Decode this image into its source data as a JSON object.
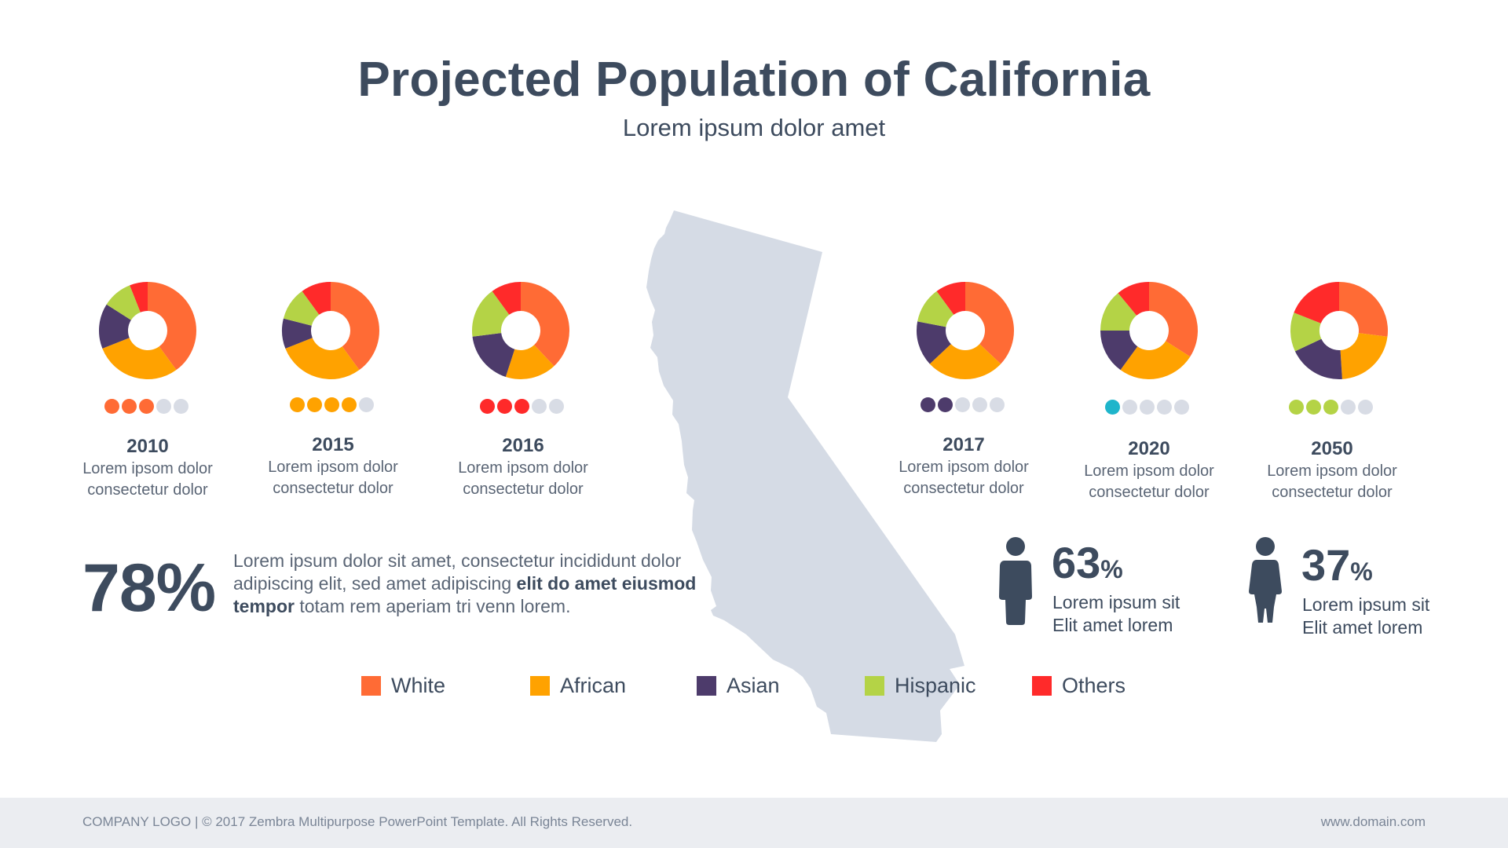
{
  "header": {
    "title": "Projected Population of California",
    "subtitle": "Lorem ipsum dolor amet"
  },
  "colors": {
    "white": "#ff6b35",
    "african": "#ffa200",
    "asian": "#4d3b6b",
    "hispanic": "#b4d346",
    "others": "#ff2a2a",
    "dot_inactive": "#d8dce5",
    "map": "#d5dbe5",
    "dark": "#3d4b5e"
  },
  "chart_data": {
    "type": "pie",
    "variant": "donut",
    "legend": [
      "White",
      "African",
      "Asian",
      "Hispanic",
      "Others"
    ],
    "charts": [
      {
        "year": "2010",
        "desc_line1": "Lorem ipsom dolor",
        "desc_line2": "consectetur dolor",
        "values": [
          40,
          29,
          15,
          10,
          6
        ],
        "dots_active": 3,
        "dots_total": 5,
        "dot_color": "#ff6b35"
      },
      {
        "year": "2015",
        "desc_line1": "Lorem ipsom dolor",
        "desc_line2": "consectetur dolor",
        "values": [
          40,
          29,
          10,
          11,
          10
        ],
        "dots_active": 4,
        "dots_total": 5,
        "dot_color": "#ffa200"
      },
      {
        "year": "2016",
        "desc_line1": "Lorem ipsom dolor",
        "desc_line2": "consectetur dolor",
        "values": [
          38,
          17,
          18,
          17,
          10
        ],
        "dots_active": 3,
        "dots_total": 5,
        "dot_color": "#ff2a2a"
      },
      {
        "year": "2017",
        "desc_line1": "Lorem ipsom dolor",
        "desc_line2": "consectetur dolor",
        "values": [
          37,
          26,
          15,
          12,
          10
        ],
        "dots_active": 2,
        "dots_total": 5,
        "dot_color": "#4d3b6b"
      },
      {
        "year": "2020",
        "desc_line1": "Lorem ipsom dolor",
        "desc_line2": "consectetur dolor",
        "values": [
          34,
          26,
          15,
          14,
          11
        ],
        "dots_active": 1,
        "dots_total": 5,
        "dot_color": "#1fb5cb"
      },
      {
        "year": "2050",
        "desc_line1": "Lorem ipsom dolor",
        "desc_line2": "consectetur dolor",
        "values": [
          27,
          22,
          19,
          13,
          19
        ],
        "dots_active": 3,
        "dots_total": 5,
        "dot_color": "#b4d346"
      }
    ]
  },
  "highlight": {
    "percent": "78%",
    "text_part1": "Lorem ipsum dolor sit amet, consectetur  incididunt dolor  adipiscing elit, sed amet adipiscing ",
    "text_bold": "elit do amet eiusmod tempor",
    "text_part2": " totam rem aperiam tri venn lorem."
  },
  "stats": {
    "male": {
      "number": "63",
      "unit": "%",
      "line1": "Lorem ipsum sit",
      "line2": "Elit amet lorem",
      "icon": "male-person-icon"
    },
    "female": {
      "number": "37",
      "unit": "%",
      "line1": "Lorem ipsum sit",
      "line2": "Elit amet lorem",
      "icon": "female-person-icon"
    }
  },
  "legend": [
    {
      "label": "White",
      "color": "#ff6b35"
    },
    {
      "label": "African",
      "color": "#ffa200"
    },
    {
      "label": "Asian",
      "color": "#4d3b6b"
    },
    {
      "label": "Hispanic",
      "color": "#b4d346"
    },
    {
      "label": "Others",
      "color": "#ff2a2a"
    }
  ],
  "footer": {
    "left": "COMPANY LOGO | © 2017 Zembra Multipurpose PowerPoint Template. All Rights Reserved.",
    "right": "www.domain.com"
  }
}
